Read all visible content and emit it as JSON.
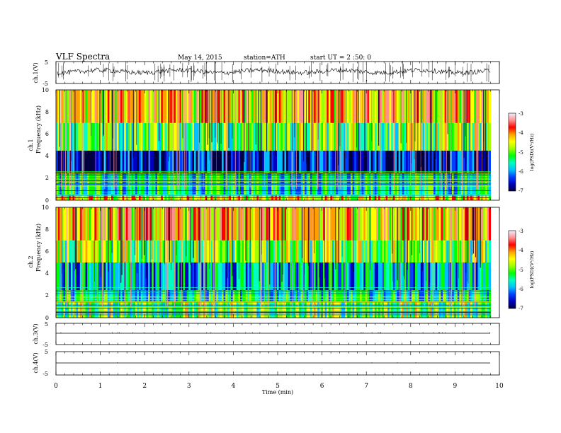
{
  "header": {
    "title": "VLF  Spectra",
    "date": "May 14, 2015",
    "station": "station=ATH",
    "start": "start  UT  =   2 :50: 0"
  },
  "panels": {
    "ch1_wave": {
      "label": "ch.1(V)",
      "yticks": [
        "5",
        "-5"
      ]
    },
    "ch1_spec": {
      "label_top": "ch.1",
      "label_bottom": "Frequency  (kHz)",
      "yticks": [
        "10",
        "8",
        "6",
        "4",
        "2",
        "0"
      ]
    },
    "ch2_spec": {
      "label_top": "ch.2",
      "label_bottom": "Frequency  (kHz)",
      "yticks": [
        "10",
        "8",
        "6",
        "4",
        "2",
        "0"
      ]
    },
    "ch3_wave": {
      "label": "ch.3(V)",
      "yticks": [
        "5",
        "-5"
      ]
    },
    "ch4_wave": {
      "label": "ch.4(V)",
      "yticks": [
        "5",
        "-5"
      ]
    }
  },
  "colorbar": {
    "label": "log(PSD)(V²/Hz)",
    "ticks": [
      "-3",
      "-4",
      "-5",
      "-6",
      "-7"
    ],
    "colors": [
      "#f0f0ff",
      "#ff9090",
      "#ff0000",
      "#ffa000",
      "#ffff00",
      "#a0ff00",
      "#00ff00",
      "#00ffc0",
      "#00c0ff",
      "#0040ff",
      "#0000c0",
      "#000040"
    ]
  },
  "xaxis": {
    "label": "Time  (min)",
    "ticks": [
      "0",
      "1",
      "2",
      "3",
      "4",
      "5",
      "6",
      "7",
      "8",
      "9",
      "10"
    ]
  },
  "chart_data": {
    "type": "heatmap",
    "title": "VLF  Spectra",
    "xlabel": "Time  (min)",
    "ylabel": "Frequency  (kHz)",
    "xlim": [
      0,
      10
    ],
    "data_end_min": 9.8,
    "ylim": [
      0,
      10
    ],
    "zlim": [
      -7,
      -3
    ],
    "zlabel": "log(PSD)(V²/Hz)",
    "series": [
      {
        "name": "ch.1",
        "bands": [
          {
            "f": [
              0,
              0.5
            ],
            "logPSD": -4.5
          },
          {
            "f": [
              0.5,
              2.5
            ],
            "logPSD": -5.5
          },
          {
            "f": [
              2.5,
              4.5
            ],
            "logPSD": -6.5
          },
          {
            "f": [
              4.5,
              7
            ],
            "logPSD": -5
          },
          {
            "f": [
              7,
              10
            ],
            "logPSD": -4.3
          }
        ]
      },
      {
        "name": "ch.2",
        "bands": [
          {
            "f": [
              0,
              1.5
            ],
            "logPSD": -5
          },
          {
            "f": [
              1.5,
              2.5
            ],
            "logPSD": -5.5
          },
          {
            "f": [
              2.5,
              5
            ],
            "logPSD": -5.8
          },
          {
            "f": [
              5,
              7
            ],
            "logPSD": -5
          },
          {
            "f": [
              7,
              10
            ],
            "logPSD": -4.3
          }
        ]
      }
    ],
    "waveforms": [
      {
        "name": "ch.1(V)",
        "ylim": [
          -5,
          5
        ],
        "level": 0.5
      },
      {
        "name": "ch.3(V)",
        "ylim": [
          -5,
          5
        ],
        "level": 0
      },
      {
        "name": "ch.4(V)",
        "ylim": [
          -5,
          5
        ],
        "level": 0
      }
    ]
  }
}
